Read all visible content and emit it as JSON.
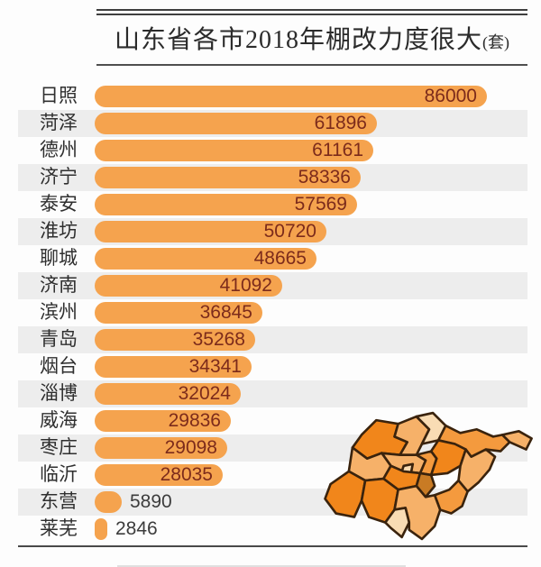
{
  "title": {
    "text": "山东省各市2018年棚改力度很大",
    "unit": "(套)"
  },
  "chart_data": {
    "type": "bar",
    "orientation": "horizontal",
    "title": "山东省各市2018年棚改力度很大(套)",
    "unit": "套",
    "categories": [
      "日照",
      "菏泽",
      "德州",
      "济宁",
      "泰安",
      "淮坊",
      "聊城",
      "济南",
      "滨州",
      "青岛",
      "烟台",
      "淄博",
      "威海",
      "枣庄",
      "临沂",
      "东营",
      "莱芜"
    ],
    "values": [
      86000,
      61896,
      61161,
      58336,
      57569,
      50720,
      48665,
      41092,
      36845,
      35268,
      34341,
      32024,
      29836,
      29098,
      28035,
      5890,
      2846
    ],
    "xlim": [
      0,
      86000
    ],
    "grid": false,
    "legend": "none",
    "bar_color": "#f5a34e",
    "value_label_color_inside": "#7c2b1b",
    "value_label_color_outside": "#3c3c3c",
    "row_stripe_color": "#ededed"
  },
  "map": {
    "name": "shandong-province-map",
    "palette": {
      "bright_orange": "#f1861b",
      "medium_orange": "#f49a3e",
      "light_orange": "#f6b169",
      "pale_cream": "#f9dcb4",
      "dark_orange": "#c97b24",
      "outline": "#3a230d"
    }
  }
}
